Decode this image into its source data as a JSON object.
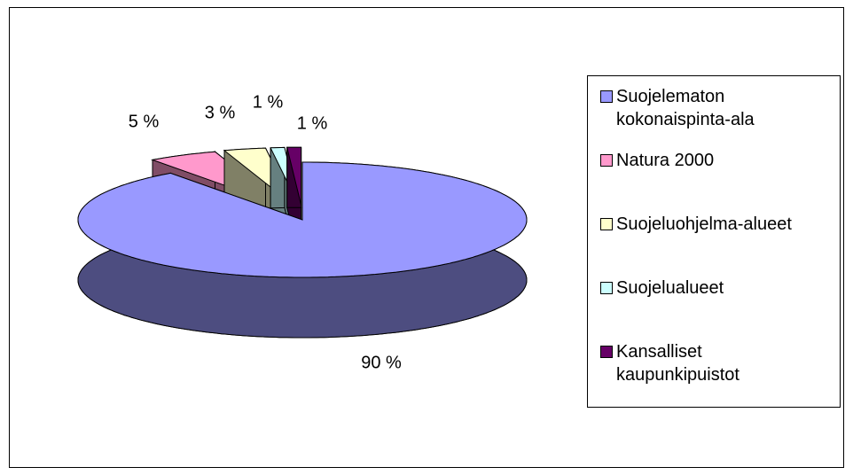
{
  "chart_data": {
    "type": "pie3d",
    "categories": [
      "Suojelematon kokonaispinta-ala",
      "Natura 2000",
      "Suojeluohjelma-alueet",
      "Suojelualueet",
      "Kansalliset kaupunkipuistot"
    ],
    "values": [
      90,
      5,
      3,
      1,
      1
    ],
    "value_labels": [
      "90 %",
      "5 %",
      "3 %",
      "1 %",
      "1 %"
    ],
    "colors": [
      "#9999ff",
      "#ff99cc",
      "#ffffcc",
      "#ccffff",
      "#660066"
    ],
    "legend": "right"
  }
}
